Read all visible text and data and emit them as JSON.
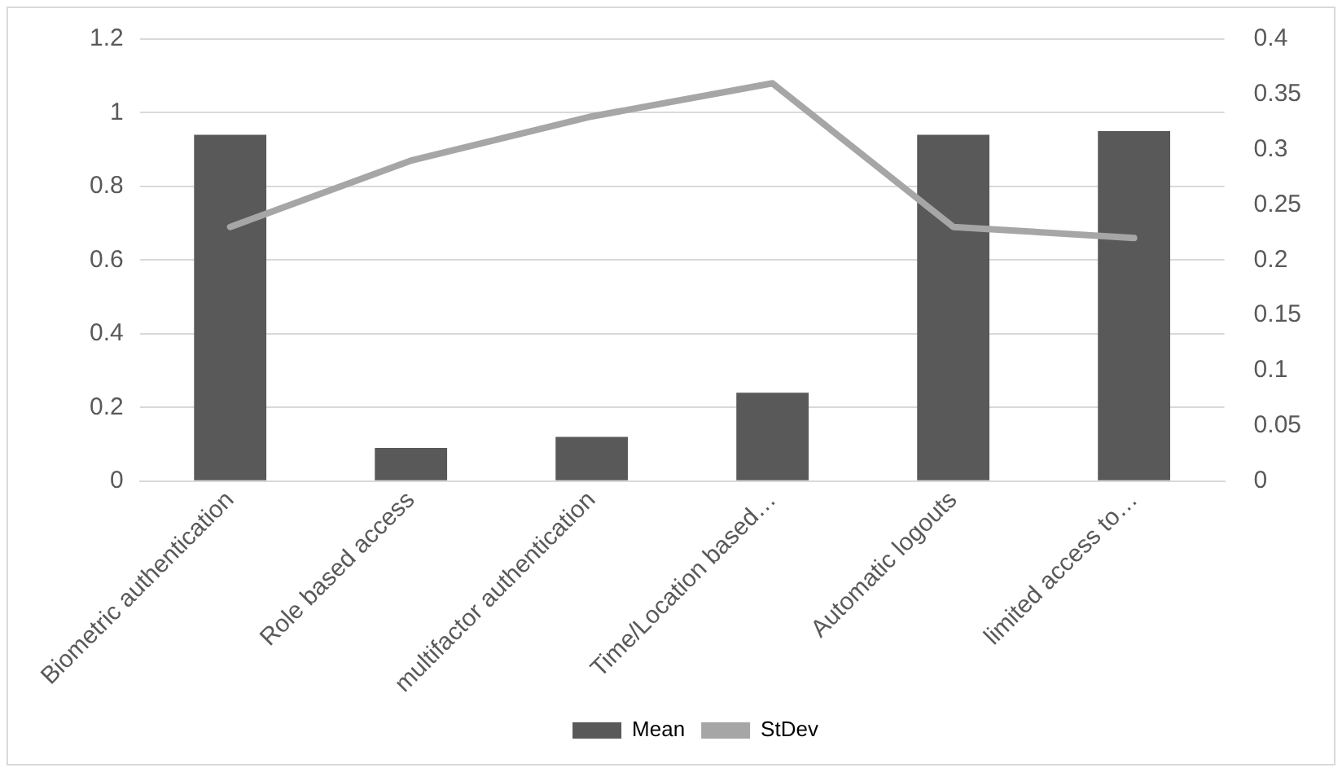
{
  "chart_data": {
    "type": "bar",
    "categories": [
      "Biometric authentication",
      "Role based access",
      "multifactor authentication",
      "Time/Location based…",
      "Automatic logouts",
      "limited access to…"
    ],
    "series": [
      {
        "name": "Mean",
        "color": "#595959",
        "values": [
          0.94,
          0.09,
          0.12,
          0.24,
          0.94,
          0.95
        ]
      },
      {
        "name": "StDev",
        "type": "line",
        "axis": "y2",
        "color": "#a6a6a6",
        "values": [
          0.23,
          0.29,
          0.33,
          0.36,
          0.23,
          0.22
        ]
      }
    ],
    "ylim": [
      0,
      1.2
    ],
    "yticks": [
      0,
      0.2,
      0.4,
      0.6,
      0.8,
      1,
      1.2
    ],
    "y2lim": [
      0,
      0.4
    ],
    "y2ticks": [
      0,
      0.05,
      0.1,
      0.15,
      0.2,
      0.25,
      0.3,
      0.35,
      0.4
    ],
    "grid": "y",
    "legend": "bottom",
    "marker": "none",
    "line_style": "solid"
  }
}
